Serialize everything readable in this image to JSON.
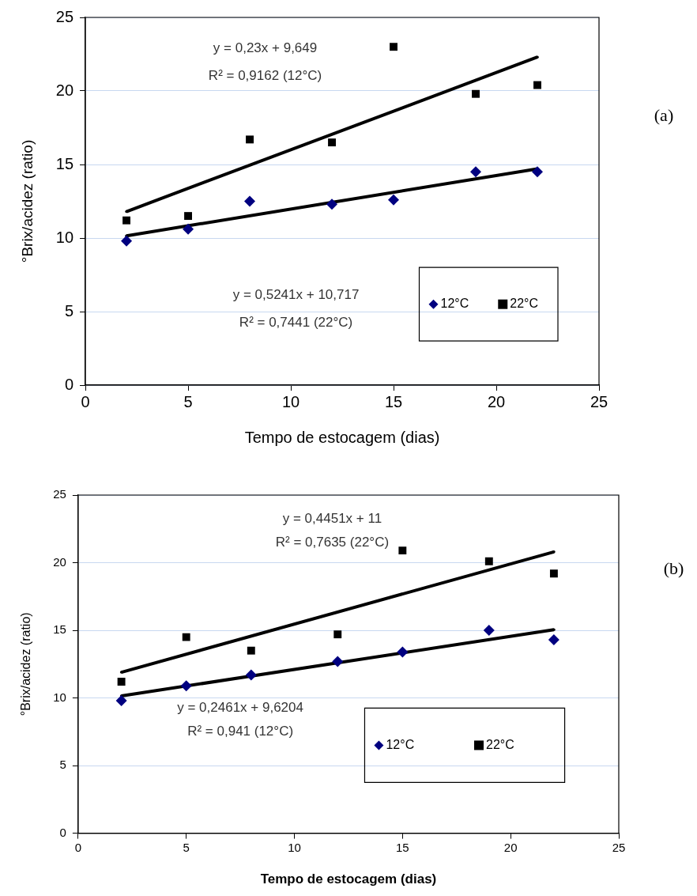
{
  "chart_data": [
    {
      "type": "scatter",
      "xlabel": "Tempo de estocagem (dias)",
      "ylabel": "°Brix/acidez (ratio)",
      "x": [
        2,
        5,
        8,
        12,
        15,
        19,
        22
      ],
      "series": [
        {
          "name": "12°C",
          "color": "#000080",
          "marker": "diamond",
          "values": [
            9.8,
            10.6,
            12.5,
            12.3,
            12.6,
            14.5,
            14.5
          ]
        },
        {
          "name": "22°C",
          "color": "#000000",
          "marker": "square",
          "values": [
            11.2,
            11.5,
            16.7,
            16.5,
            23.0,
            19.8,
            20.4
          ]
        },
        {
          "type": "line",
          "color": "#000000",
          "marker": "none",
          "values": [
            11.8,
            null,
            null,
            null,
            null,
            null,
            22.3
          ]
        },
        {
          "type": "line",
          "color": "#000000",
          "marker": "none",
          "values": [
            10.15,
            null,
            null,
            null,
            null,
            null,
            14.7
          ]
        }
      ],
      "xlim": [
        0,
        25
      ],
      "xticks": [
        0,
        5,
        10,
        15,
        20,
        25
      ],
      "ylim": [
        0,
        25
      ],
      "yticks": [
        0,
        5,
        10,
        15,
        20,
        25
      ],
      "grid": "y",
      "legend": "bottom right",
      "annotations": [
        "y = 0,23x + 9,649",
        "R² = 0,9162 (12°C)",
        "y = 0,5241x + 10,717",
        "R² = 0,7441 (22°C)",
        "(a)"
      ]
    },
    {
      "type": "scatter",
      "xlabel": "Tempo de estocagem (dias)",
      "ylabel": "°Brix/acidez (ratio)",
      "x": [
        2,
        5,
        8,
        12,
        15,
        19,
        22
      ],
      "series": [
        {
          "name": "12°C",
          "color": "#000080",
          "marker": "diamond",
          "values": [
            9.8,
            10.9,
            11.7,
            12.7,
            13.4,
            15.0,
            14.3
          ]
        },
        {
          "name": "22°C",
          "color": "#000000",
          "marker": "square",
          "values": [
            11.2,
            14.5,
            13.5,
            14.7,
            20.9,
            20.1,
            19.2
          ]
        },
        {
          "type": "line",
          "color": "#000000",
          "marker": "none",
          "values": [
            11.9,
            null,
            null,
            null,
            null,
            null,
            20.8
          ]
        },
        {
          "type": "line",
          "color": "#000000",
          "marker": "none",
          "values": [
            10.15,
            null,
            null,
            null,
            null,
            null,
            15.05
          ]
        }
      ],
      "xlim": [
        0,
        25
      ],
      "xticks": [
        0,
        5,
        10,
        15,
        20,
        25
      ],
      "ylim": [
        0,
        25
      ],
      "yticks": [
        0,
        5,
        10,
        15,
        20,
        25
      ],
      "grid": "y",
      "legend": "bottom right",
      "annotations": [
        "y = 0,4451x + 11",
        "R² = 0,7635 (22°C)",
        "y = 0,2461x + 9,6204",
        "R² = 0,941 (12°C)",
        "(b)"
      ]
    }
  ]
}
